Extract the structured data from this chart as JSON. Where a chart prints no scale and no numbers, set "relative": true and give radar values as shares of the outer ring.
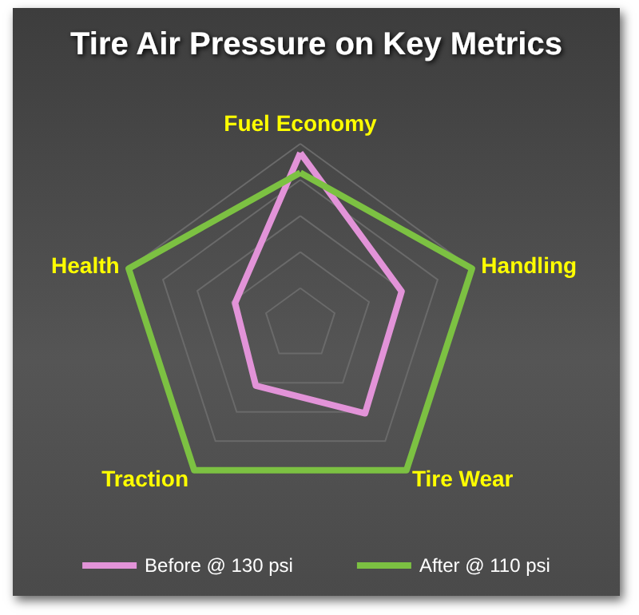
{
  "chart_data": {
    "type": "radar",
    "title": "Tire Air Pressure on Key Metrics",
    "relative": true,
    "categories": [
      "Fuel Economy",
      "Handling",
      "Tire Wear",
      "Traction",
      "Health"
    ],
    "legend": "bottom",
    "series": [
      {
        "name": "Before @ 130 psi",
        "color": "#e293d8",
        "values": [
          0.95,
          0.59,
          0.61,
          0.42,
          0.38
        ]
      },
      {
        "name": "After @ 110 psi",
        "color": "#7cc142",
        "values": [
          0.84,
          1,
          1,
          1,
          1
        ]
      }
    ]
  }
}
